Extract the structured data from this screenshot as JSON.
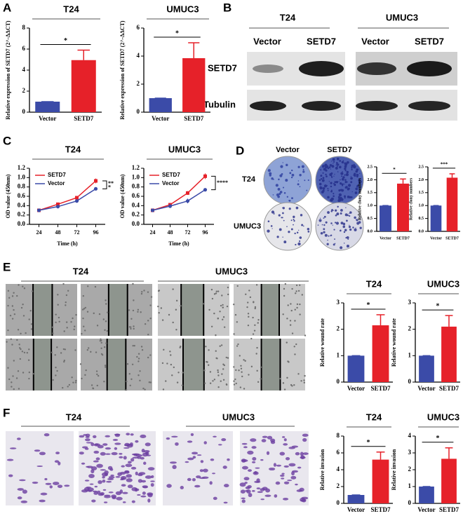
{
  "figure": {
    "panel_labels": [
      "A",
      "B",
      "C",
      "D",
      "E",
      "F"
    ],
    "blot": {
      "cell_lines": [
        "T24",
        "UMUC3"
      ],
      "groups": [
        "Vector",
        "SETD7",
        "Vector",
        "SETD7"
      ],
      "rows": [
        "SETD7",
        "Tubulin"
      ]
    },
    "colony": {
      "groups": [
        "Vector",
        "SETD7"
      ],
      "rows": [
        "T24",
        "UMUC3"
      ]
    },
    "wound": {
      "cell_lines": [
        "T24",
        "UMUC3"
      ]
    },
    "invasion": {
      "cell_lines": [
        "T24",
        "UMUC3"
      ]
    }
  },
  "chart_data": [
    {
      "type": "bar",
      "title": "T24",
      "ylabel": "Relative expression of SETD7 (2^-ΔΔCT)",
      "categories": [
        "Vector",
        "SETD7"
      ],
      "values": [
        1,
        4.95
      ],
      "errors": [
        0,
        0.95
      ],
      "colors": [
        "#3b4ba8",
        "#e62129"
      ],
      "ylim": [
        0,
        8
      ],
      "yticks": [
        0,
        2,
        4,
        6,
        8
      ],
      "significance": "*"
    },
    {
      "type": "bar",
      "title": "UMUC3",
      "ylabel": "Relative expression of SETD7 (2^-ΔΔCT)",
      "categories": [
        "Vector",
        "SETD7"
      ],
      "values": [
        1,
        3.85
      ],
      "errors": [
        0,
        1.1
      ],
      "colors": [
        "#3b4ba8",
        "#e62129"
      ],
      "ylim": [
        0,
        6
      ],
      "yticks": [
        0,
        2,
        4,
        6
      ],
      "significance": "*"
    },
    {
      "type": "line",
      "title": "T24",
      "xlabel": "Time (h)",
      "ylabel": "OD value (450nm)",
      "x": [
        24,
        48,
        72,
        96
      ],
      "xlim": [
        12,
        108
      ],
      "xticks": [
        24,
        48,
        72,
        96
      ],
      "series": [
        {
          "name": "SETD7",
          "color": "#e62129",
          "values": [
            0.3,
            0.43,
            0.57,
            0.93
          ],
          "errors": [
            0.02,
            0.02,
            0.02,
            0.05
          ]
        },
        {
          "name": "Vector",
          "color": "#3b4ba8",
          "values": [
            0.3,
            0.38,
            0.5,
            0.76
          ],
          "errors": [
            0.02,
            0.02,
            0.02,
            0.03
          ]
        }
      ],
      "ylim": [
        0,
        1.2
      ],
      "yticks": [
        {
          "value": 0,
          "label": "0.0"
        },
        {
          "value": 0.2,
          "label": "0.2"
        },
        {
          "value": 0.4,
          "label": "0.4"
        },
        {
          "value": 0.6,
          "label": "0.6"
        },
        {
          "value": 0.8,
          "label": "0.8"
        },
        {
          "value": 1,
          "label": "1.0"
        },
        {
          "value": 1.2,
          "label": "1.2"
        }
      ],
      "annotations": [
        "**",
        "*"
      ]
    },
    {
      "type": "line",
      "title": "UMUC3",
      "xlabel": "Time (h)",
      "ylabel": "OD value (450nm)",
      "x": [
        24,
        48,
        72,
        96
      ],
      "xlim": [
        12,
        108
      ],
      "xticks": [
        24,
        48,
        72,
        96
      ],
      "series": [
        {
          "name": "SETD7",
          "color": "#e62129",
          "values": [
            0.3,
            0.42,
            0.67,
            1.03
          ],
          "errors": [
            0.02,
            0.03,
            0.04,
            0.06
          ]
        },
        {
          "name": "Vector",
          "color": "#3b4ba8",
          "values": [
            0.3,
            0.39,
            0.5,
            0.74
          ],
          "errors": [
            0.02,
            0.04,
            0.05,
            0.02
          ]
        }
      ],
      "ylim": [
        0,
        1.2
      ],
      "yticks": [
        {
          "value": 0,
          "label": "0.0"
        },
        {
          "value": 0.2,
          "label": "0.2"
        },
        {
          "value": 0.4,
          "label": "0.4"
        },
        {
          "value": 0.6,
          "label": "0.6"
        },
        {
          "value": 0.8,
          "label": "0.8"
        },
        {
          "value": 1,
          "label": "1.0"
        },
        {
          "value": 1.2,
          "label": "1.2"
        }
      ],
      "annotations": [
        "****"
      ]
    },
    {
      "type": "bar",
      "ylabel": "Relative clony numbers",
      "categories": [
        "Vector",
        "SETD7"
      ],
      "values": [
        1,
        1.85
      ],
      "errors": [
        0,
        0.18
      ],
      "colors": [
        "#3b4ba8",
        "#e62129"
      ],
      "ylim": [
        0,
        2.5
      ],
      "yticks": [
        {
          "value": 0,
          "label": "0.0"
        },
        {
          "value": 0.5,
          "label": "0.5"
        },
        {
          "value": 1,
          "label": "1.0"
        },
        {
          "value": 1.5,
          "label": "1.5"
        },
        {
          "value": 2,
          "label": "2.0"
        },
        {
          "value": 2.5,
          "label": "2.5"
        }
      ],
      "significance": "*"
    },
    {
      "type": "bar",
      "ylabel": "Relative clony numbers",
      "categories": [
        "Vector",
        "SETD7"
      ],
      "values": [
        1,
        2.08
      ],
      "errors": [
        0,
        0.15
      ],
      "colors": [
        "#3b4ba8",
        "#e62129"
      ],
      "ylim": [
        0,
        2.5
      ],
      "yticks": [
        {
          "value": 0,
          "label": "0.0"
        },
        {
          "value": 0.5,
          "label": "0.5"
        },
        {
          "value": 1,
          "label": "1.0"
        },
        {
          "value": 1.5,
          "label": "1.5"
        },
        {
          "value": 2,
          "label": "2.0"
        },
        {
          "value": 2.5,
          "label": "2.5"
        }
      ],
      "significance": "***"
    },
    {
      "type": "bar",
      "title": "T24",
      "ylabel": "Relative wound rate",
      "categories": [
        "Vector",
        "SETD7"
      ],
      "values": [
        1,
        2.15
      ],
      "errors": [
        0,
        0.4
      ],
      "colors": [
        "#3b4ba8",
        "#e62129"
      ],
      "ylim": [
        0,
        3
      ],
      "yticks": [
        0,
        1,
        2,
        3
      ],
      "significance": "*"
    },
    {
      "type": "bar",
      "title": "UMUC3",
      "ylabel": "Relative wound rate",
      "categories": [
        "Vector",
        "SETD7"
      ],
      "values": [
        1,
        2.1
      ],
      "errors": [
        0,
        0.42
      ],
      "colors": [
        "#3b4ba8",
        "#e62129"
      ],
      "ylim": [
        0,
        3
      ],
      "yticks": [
        0,
        1,
        2,
        3
      ],
      "significance": "*"
    },
    {
      "type": "bar",
      "title": "T24",
      "ylabel": "Relative invasion",
      "categories": [
        "Vector",
        "SETD7"
      ],
      "values": [
        1,
        5.2
      ],
      "errors": [
        0,
        0.9
      ],
      "colors": [
        "#3b4ba8",
        "#e62129"
      ],
      "ylim": [
        0,
        8
      ],
      "yticks": [
        0,
        2,
        4,
        6,
        8
      ],
      "significance": "*"
    },
    {
      "type": "bar",
      "title": "UMUC3",
      "ylabel": "Relative invasion",
      "categories": [
        "Vector",
        "SETD7"
      ],
      "values": [
        1,
        2.65
      ],
      "errors": [
        0,
        0.65
      ],
      "colors": [
        "#3b4ba8",
        "#e62129"
      ],
      "ylim": [
        0,
        4
      ],
      "yticks": [
        0,
        1,
        2,
        3,
        4
      ],
      "significance": "*"
    }
  ]
}
